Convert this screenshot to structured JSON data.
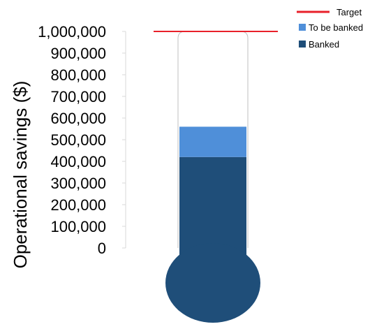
{
  "chart_data": {
    "type": "bar",
    "title": "",
    "ylabel": "Operational savings ($)",
    "ylim": [
      0,
      1000000
    ],
    "yticks": [
      0,
      100000,
      200000,
      300000,
      400000,
      500000,
      600000,
      700000,
      800000,
      900000,
      1000000
    ],
    "ytick_labels": [
      "0",
      "100,000",
      "200,000",
      "300,000",
      "400,000",
      "500,000",
      "600,000",
      "700,000",
      "800,000",
      "900,000",
      "1,000,000"
    ],
    "series": [
      {
        "name": "Banked",
        "value": 420000,
        "color": "#1f4e79"
      },
      {
        "name": "To be banked",
        "value": 140000,
        "color": "#4f8fd9"
      }
    ],
    "target": {
      "name": "Target",
      "value": 1000000,
      "color": "#e8202a"
    },
    "legend": {
      "placement": "top-right",
      "entries": [
        "Target",
        "To be banked",
        "Banked"
      ]
    },
    "grid": false
  }
}
